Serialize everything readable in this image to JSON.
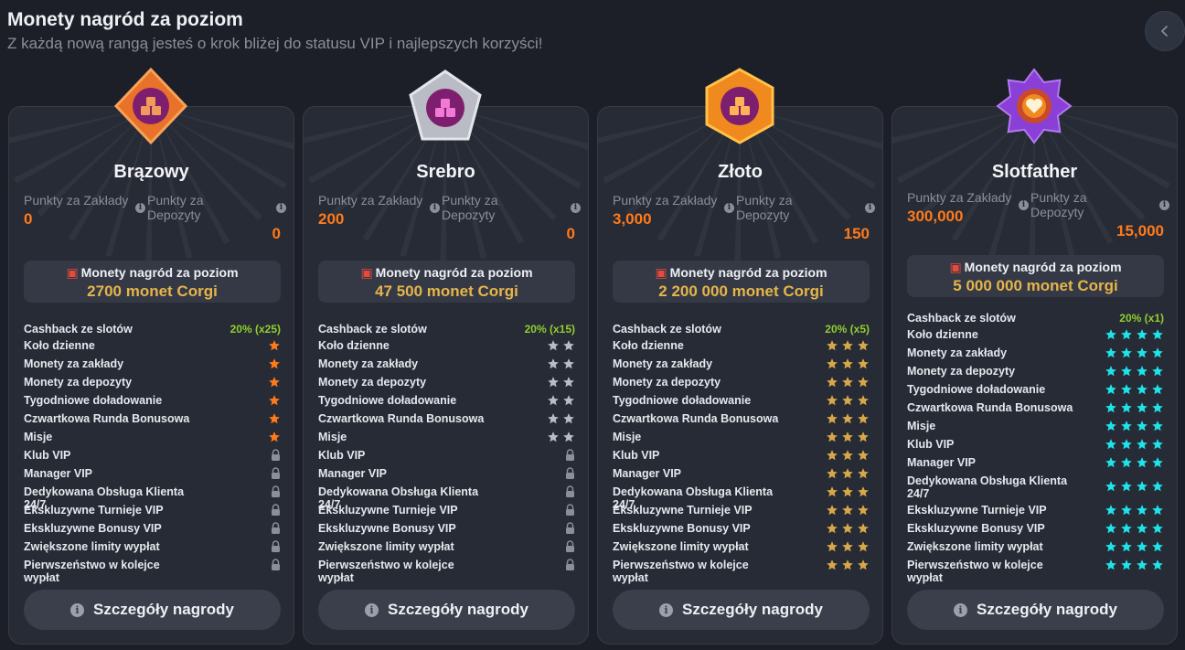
{
  "header": {
    "title": "Monety nagród za poziom",
    "subtitle": "Z każdą nową rangą jesteś o krok bliżej do statusu VIP i najlepszych korzyści!"
  },
  "back_icon": "chevron-left-icon",
  "colors": {
    "accent_orange": "#ff7a1a",
    "gold": "#e6b54a",
    "green": "#8fcf2e",
    "cyan": "#1ee3e8"
  },
  "cards": [
    {
      "name": "Brązowy",
      "badge_icon": "bronze-diamond-badge-icon",
      "bet_points_label": "Punkty za Zakłady",
      "deposit_points_label": "Punkty za Depozyty",
      "bet_points": "0",
      "deposit_points": "0",
      "reward_label": "Monety nagród za poziom",
      "reward_value": "2700 monet Corgi",
      "cashback_label": "Cashback ze slotów",
      "cashback_value": "20% (x25)",
      "benefits": [
        {
          "label": "Koło dzienne",
          "stars": 1
        },
        {
          "label": "Monety za zakłady",
          "stars": 1
        },
        {
          "label": "Monety za depozyty",
          "stars": 1
        },
        {
          "label": "Tygodniowe doładowanie",
          "stars": 1
        },
        {
          "label": "Czwartkowa Runda Bonusowa",
          "stars": 1
        },
        {
          "label": "Misje",
          "stars": 1
        },
        {
          "label": "Klub VIP",
          "stars": 0
        },
        {
          "label": "Manager VIP",
          "stars": 0
        },
        {
          "label": "Dedykowana Obsługa Klienta 24/7",
          "stars": 0
        },
        {
          "label": "Ekskluzywne Turnieje VIP",
          "stars": 0
        },
        {
          "label": "Ekskluzywne Bonusy VIP",
          "stars": 0
        },
        {
          "label": "Zwiększone limity wypłat",
          "stars": 0
        },
        {
          "label": "Pierwszeństwo w kolejce wypłat",
          "stars": 0
        }
      ],
      "star_color": "#ff7a1a",
      "details_label": "Szczegóły nagrody"
    },
    {
      "name": "Srebro",
      "badge_icon": "silver-pentagon-badge-icon",
      "bet_points_label": "Punkty za Zakłady",
      "deposit_points_label": "Punkty za Depozyty",
      "bet_points": "200",
      "deposit_points": "0",
      "reward_label": "Monety nagród za poziom",
      "reward_value": "47 500 monet Corgi",
      "cashback_label": "Cashback ze slotów",
      "cashback_value": "20% (x15)",
      "benefits": [
        {
          "label": "Koło dzienne",
          "stars": 2
        },
        {
          "label": "Monety za zakłady",
          "stars": 2
        },
        {
          "label": "Monety za depozyty",
          "stars": 2
        },
        {
          "label": "Tygodniowe doładowanie",
          "stars": 2
        },
        {
          "label": "Czwartkowa Runda Bonusowa",
          "stars": 2
        },
        {
          "label": "Misje",
          "stars": 2
        },
        {
          "label": "Klub VIP",
          "stars": 0
        },
        {
          "label": "Manager VIP",
          "stars": 0
        },
        {
          "label": "Dedykowana Obsługa Klienta 24/7",
          "stars": 0
        },
        {
          "label": "Ekskluzywne Turnieje VIP",
          "stars": 0
        },
        {
          "label": "Ekskluzywne Bonusy VIP",
          "stars": 0
        },
        {
          "label": "Zwiększone limity wypłat",
          "stars": 0
        },
        {
          "label": "Pierwszeństwo w kolejce wypłat",
          "stars": 0
        }
      ],
      "star_color": "#b8bcc6",
      "details_label": "Szczegóły nagrody"
    },
    {
      "name": "Złoto",
      "badge_icon": "gold-hexagon-badge-icon",
      "bet_points_label": "Punkty za Zakłady",
      "deposit_points_label": "Punkty za Depozyty",
      "bet_points": "3,000",
      "deposit_points": "150",
      "reward_label": "Monety nagród za poziom",
      "reward_value": "2 200 000 monet Corgi",
      "cashback_label": "Cashback ze slotów",
      "cashback_value": "20% (x5)",
      "benefits": [
        {
          "label": "Koło dzienne",
          "stars": 3
        },
        {
          "label": "Monety za zakłady",
          "stars": 3
        },
        {
          "label": "Monety za depozyty",
          "stars": 3
        },
        {
          "label": "Tygodniowe doładowanie",
          "stars": 3
        },
        {
          "label": "Czwartkowa Runda Bonusowa",
          "stars": 3
        },
        {
          "label": "Misje",
          "stars": 3
        },
        {
          "label": "Klub VIP",
          "stars": 3
        },
        {
          "label": "Manager VIP",
          "stars": 3
        },
        {
          "label": "Dedykowana Obsługa Klienta 24/7",
          "stars": 3
        },
        {
          "label": "Ekskluzywne Turnieje VIP",
          "stars": 3
        },
        {
          "label": "Ekskluzywne Bonusy VIP",
          "stars": 3
        },
        {
          "label": "Zwiększone limity wypłat",
          "stars": 3
        },
        {
          "label": "Pierwszeństwo w kolejce wypłat",
          "stars": 3
        }
      ],
      "star_color": "#d8a74a",
      "details_label": "Szczegóły nagrody"
    },
    {
      "name": "Slotfather",
      "badge_icon": "purple-star-badge-icon",
      "bet_points_label": "Punkty za Zakłady",
      "deposit_points_label": "Punkty za Depozyty",
      "bet_points": "300,000",
      "deposit_points": "15,000",
      "reward_label": "Monety nagród za poziom",
      "reward_value": "5 000 000 monet Corgi",
      "cashback_label": "Cashback ze slotów",
      "cashback_value": "20% (x1)",
      "benefits": [
        {
          "label": "Koło dzienne",
          "stars": 4
        },
        {
          "label": "Monety za zakłady",
          "stars": 4
        },
        {
          "label": "Monety za depozyty",
          "stars": 4
        },
        {
          "label": "Tygodniowe doładowanie",
          "stars": 4
        },
        {
          "label": "Czwartkowa Runda Bonusowa",
          "stars": 4
        },
        {
          "label": "Misje",
          "stars": 4
        },
        {
          "label": "Klub VIP",
          "stars": 4
        },
        {
          "label": "Manager VIP",
          "stars": 4
        },
        {
          "label": "Dedykowana Obsługa Klienta 24/7",
          "stars": 4
        },
        {
          "label": "Ekskluzywne Turnieje VIP",
          "stars": 4
        },
        {
          "label": "Ekskluzywne Bonusy VIP",
          "stars": 4
        },
        {
          "label": "Zwiększone limity wypłat",
          "stars": 4
        },
        {
          "label": "Pierwszeństwo w kolejce wypłat",
          "stars": 4
        }
      ],
      "star_color": "#1ee3e8",
      "details_label": "Szczegóły nagrody"
    }
  ]
}
